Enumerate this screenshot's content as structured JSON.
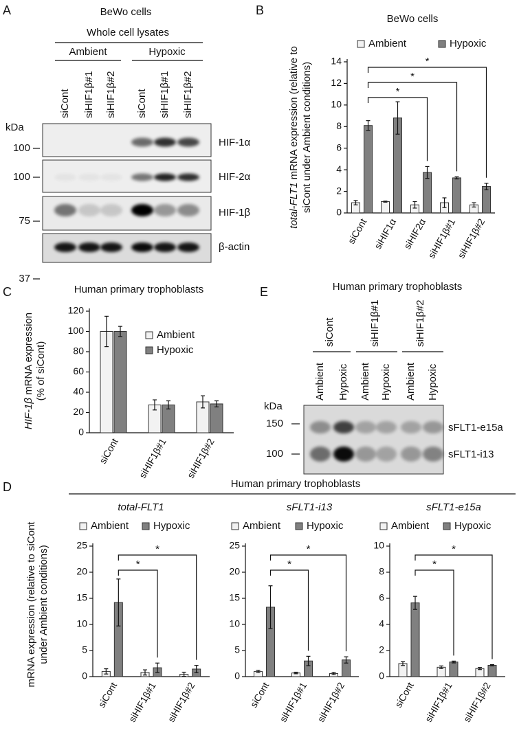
{
  "panel_labels": [
    "A",
    "B",
    "C",
    "D",
    "E"
  ],
  "blot_a": {
    "title": "BeWo cells",
    "subtitle": "Whole cell lysates",
    "groups": [
      "Ambient",
      "Hypoxic"
    ],
    "lanes": [
      "siCont",
      "siHIF1β#1",
      "siHIF1β#2",
      "siCont",
      "siHIF1β#1",
      "siHIF1β#2"
    ],
    "unit": "kDa",
    "markers": [
      100,
      100,
      75,
      37
    ],
    "bands": [
      "HIF-1α",
      "HIF-2α",
      "HIF-1β",
      "β-actin"
    ]
  },
  "blot_e": {
    "title": "Human primary trophoblasts",
    "groups": [
      "siCont",
      "siHIF1β#1",
      "siHIF1β#2"
    ],
    "lanes": [
      "Ambient",
      "Hypoxic",
      "Ambient",
      "Hypoxic",
      "Ambient",
      "Hypoxic"
    ],
    "unit": "kDa",
    "markers": [
      150,
      100
    ],
    "bands": [
      "sFLT1-e15a",
      "sFLT1-i13"
    ]
  },
  "panel_d": {
    "title": "Human primary trophoblasts",
    "ylabel": [
      "mRNA expression (relative to siCont",
      "under Ambient conditions)"
    ]
  },
  "chart_data": [
    {
      "type": "bar",
      "title": "BeWo cells",
      "ylabel": [
        [
          "total-FLT1",
          " mRNA expression (relative to"
        ],
        [
          "siCont under Ambient conditions)"
        ]
      ],
      "categories": [
        "siCont",
        "siHIF1α",
        "siHIF2α",
        "siHIF1β#1",
        "siHIF1β#2"
      ],
      "series": [
        {
          "name": "Ambient",
          "color": "#f2f2f2",
          "values": [
            0.95,
            1.05,
            0.75,
            0.95,
            0.75
          ],
          "errors": [
            0.2,
            0.05,
            0.3,
            0.45,
            0.2
          ]
        },
        {
          "name": "Hypoxic",
          "color": "#808080",
          "values": [
            8.1,
            8.8,
            3.75,
            3.25,
            2.45
          ],
          "errors": [
            0.45,
            1.5,
            0.55,
            0.1,
            0.3
          ]
        }
      ],
      "ylim": [
        0,
        14
      ],
      "yticks": [
        0,
        2,
        4,
        6,
        8,
        10,
        12,
        14
      ],
      "significance": [
        "*",
        "*",
        "*"
      ]
    },
    {
      "type": "bar",
      "title": "Human primary trophoblasts",
      "ylabel": [
        [
          "HIF-1β",
          " mRNA expression"
        ],
        [
          "(% of siCont)"
        ]
      ],
      "categories": [
        "siCont",
        "siHIF1β#1",
        "siHIF1β#2"
      ],
      "series": [
        {
          "name": "Ambient",
          "color": "#f2f2f2",
          "values": [
            100,
            27.5,
            30.5
          ],
          "errors": [
            15,
            5,
            6
          ]
        },
        {
          "name": "Hypoxic",
          "color": "#808080",
          "values": [
            100,
            27.5,
            28.5
          ],
          "errors": [
            5,
            4,
            3
          ]
        }
      ],
      "ylim": [
        0,
        120
      ],
      "yticks": [
        0,
        20,
        40,
        60,
        80,
        100,
        120
      ]
    },
    {
      "type": "bar",
      "title": "total-FLT1",
      "categories": [
        "siCont",
        "siHIF1β#1",
        "siHIF1β#2"
      ],
      "series": [
        {
          "name": "Ambient",
          "color": "#f2f2f2",
          "values": [
            1.0,
            0.8,
            0.45
          ],
          "errors": [
            0.5,
            0.5,
            0.4
          ]
        },
        {
          "name": "Hypoxic",
          "color": "#808080",
          "values": [
            14.2,
            1.7,
            1.45
          ],
          "errors": [
            4.5,
            0.9,
            0.7
          ]
        }
      ],
      "ylim": [
        0,
        25
      ],
      "yticks": [
        0,
        5,
        10,
        15,
        20,
        25
      ],
      "significance": [
        "*",
        "*"
      ]
    },
    {
      "type": "bar",
      "title": "sFLT1-i13",
      "categories": [
        "siCont",
        "siHIF1β#1",
        "siHIF1β#2"
      ],
      "series": [
        {
          "name": "Ambient",
          "color": "#f2f2f2",
          "values": [
            1.0,
            0.7,
            0.6
          ],
          "errors": [
            0.2,
            0.15,
            0.2
          ]
        },
        {
          "name": "Hypoxic",
          "color": "#808080",
          "values": [
            13.3,
            3.0,
            3.2
          ],
          "errors": [
            4.1,
            0.9,
            0.6
          ]
        }
      ],
      "ylim": [
        0,
        25
      ],
      "yticks": [
        0,
        5,
        10,
        15,
        20,
        25
      ],
      "significance": [
        "*",
        "*"
      ]
    },
    {
      "type": "bar",
      "title": "sFLT1-e15a",
      "categories": [
        "siCont",
        "siHIF1β#1",
        "siHIF1β#2"
      ],
      "series": [
        {
          "name": "Ambient",
          "color": "#f2f2f2",
          "values": [
            1.0,
            0.72,
            0.62
          ],
          "errors": [
            0.15,
            0.1,
            0.08
          ]
        },
        {
          "name": "Hypoxic",
          "color": "#808080",
          "values": [
            5.65,
            1.12,
            0.87
          ],
          "errors": [
            0.5,
            0.07,
            0.05
          ]
        }
      ],
      "ylim": [
        0,
        10
      ],
      "yticks": [
        0,
        2,
        4,
        6,
        8,
        10
      ],
      "significance": [
        "*",
        "*"
      ]
    }
  ]
}
